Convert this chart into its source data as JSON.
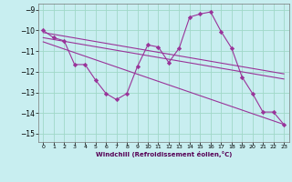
{
  "xlabel": "Windchill (Refroidissement éolien,°C)",
  "bg_color": "#c8eef0",
  "grid_color": "#a0d8c8",
  "line_color": "#993399",
  "xlim": [
    -0.5,
    23.5
  ],
  "ylim": [
    -15.4,
    -8.7
  ],
  "xticks": [
    0,
    1,
    2,
    3,
    4,
    5,
    6,
    7,
    8,
    9,
    10,
    11,
    12,
    13,
    14,
    15,
    16,
    17,
    18,
    19,
    20,
    21,
    22,
    23
  ],
  "yticks": [
    -15,
    -14,
    -13,
    -12,
    -11,
    -10,
    -9
  ],
  "series1_x": [
    0,
    1,
    2,
    3,
    4,
    5,
    6,
    7,
    8,
    9,
    10,
    11,
    12,
    13,
    14,
    15,
    16,
    17,
    18,
    19,
    20,
    21,
    22,
    23
  ],
  "series1_y": [
    -10.0,
    -10.35,
    -10.5,
    -11.65,
    -11.65,
    -12.4,
    -13.05,
    -13.35,
    -13.05,
    -11.75,
    -10.7,
    -10.8,
    -11.55,
    -10.85,
    -9.35,
    -9.2,
    -9.1,
    -10.05,
    -10.85,
    -12.25,
    -13.05,
    -13.95,
    -13.95,
    -14.55
  ],
  "series2_x": [
    0,
    23
  ],
  "series2_y": [
    -10.1,
    -12.1
  ],
  "series3_x": [
    0,
    23
  ],
  "series3_y": [
    -10.35,
    -12.35
  ],
  "series4_x": [
    0,
    23
  ],
  "series4_y": [
    -10.55,
    -14.55
  ]
}
